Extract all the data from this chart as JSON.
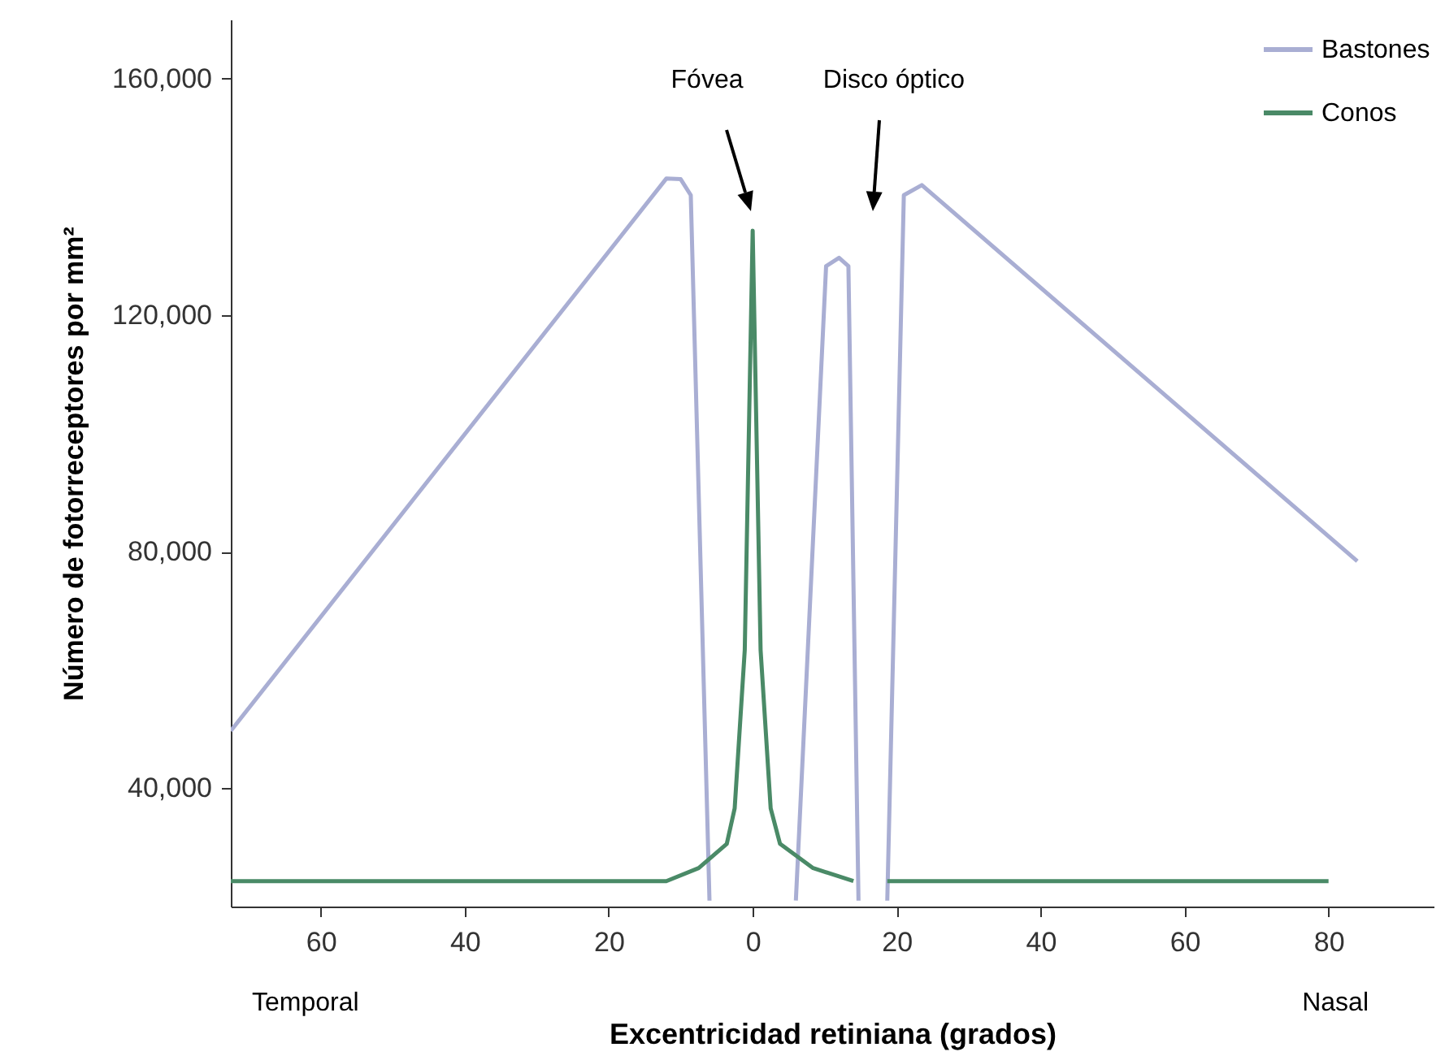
{
  "chart_data": {
    "type": "line",
    "xlabel": "Excentricidad retiniana  (grados)",
    "ylabel": "Número de fotorreceptores por mm²",
    "xlim": [
      -72.5,
      94.6
    ],
    "ylim": [
      20000,
      170000
    ],
    "xticks": [
      {
        "value": -60,
        "label": "60"
      },
      {
        "value": -40,
        "label": "40"
      },
      {
        "value": -20,
        "label": "20"
      },
      0,
      20,
      40,
      60,
      80
    ],
    "yticks": [
      {
        "value": 40000,
        "label": "40,000"
      },
      {
        "value": 80000,
        "label": "80,000"
      },
      {
        "value": 120000,
        "label": "120,000"
      },
      {
        "value": 160000,
        "label": "160,000"
      }
    ],
    "series": [
      {
        "name": "Bastones",
        "color": "#a9aed3",
        "x": [
          -72.5,
          -12,
          -10,
          -8.6,
          -6,
          0,
          6,
          10.2,
          12,
          13.3,
          14.7,
          16.7,
          18.7,
          21,
          23.5,
          84
        ],
        "values": [
          49700,
          143100,
          143000,
          140300,
          21000,
          null,
          21000,
          128300,
          129700,
          128300,
          21000,
          null,
          21000,
          140300,
          142000,
          78400
        ]
      },
      {
        "name": "Conos",
        "color": "#4a8a67",
        "x": [
          -72.5,
          -12,
          -7.5,
          -3.6,
          -2.5,
          -1.1,
          0,
          1.1,
          2.5,
          3.8,
          8.4,
          14,
          16.5,
          18.7,
          80
        ],
        "values": [
          24300,
          24300,
          26500,
          30600,
          36600,
          63400,
          134300,
          63400,
          36600,
          30600,
          26500,
          24300,
          null,
          24300,
          24300
        ]
      }
    ],
    "legend": "top right",
    "grid": false,
    "annotations": [
      "Fóvea",
      "Disco óptico",
      "Temporal",
      "Nasal"
    ]
  }
}
